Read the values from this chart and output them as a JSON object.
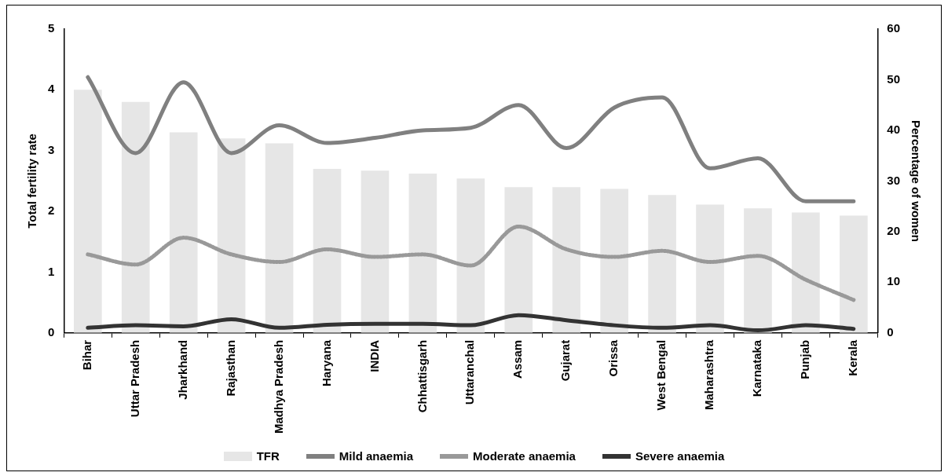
{
  "chart_data": {
    "type": "bar",
    "categories": [
      "Bihar",
      "Uttar Pradesh",
      "Jharkhand",
      "Rajasthan",
      "Madhya Pradesh",
      "Haryana",
      "INDIA",
      "Chhattisgarh",
      "Uttaranchal",
      "Assam",
      "Gujarat",
      "Orissa",
      "West Bengal",
      "Maharashtra",
      "Karnataka",
      "Punjab",
      "Kerala"
    ],
    "ylabel": "Total fertility rate",
    "y2label": "Percentage of women",
    "ylim": [
      0,
      5
    ],
    "yticks": [
      0,
      1,
      2,
      3,
      4,
      5
    ],
    "y2lim": [
      0,
      60
    ],
    "y2ticks": [
      0,
      10,
      20,
      30,
      40,
      50,
      60
    ],
    "grid": false,
    "legend": "bottom",
    "marker": "none",
    "series": [
      {
        "name": "TFR",
        "color": "#e6e6e6",
        "values": [
          4.0,
          3.8,
          3.3,
          3.2,
          3.12,
          2.7,
          2.67,
          2.62,
          2.54,
          2.4,
          2.4,
          2.37,
          2.27,
          2.11,
          2.05,
          1.98,
          1.93
        ]
      },
      {
        "name": "Mild anaemia",
        "type": "line",
        "axis": "y2",
        "color": "#808080",
        "values": [
          50.5,
          35.5,
          49.5,
          35.5,
          41,
          37.5,
          38.5,
          40,
          40.5,
          45,
          36.5,
          44.5,
          46.5,
          32.5,
          34.5,
          26,
          26
        ]
      },
      {
        "name": "Moderate anaemia",
        "type": "line",
        "axis": "y2",
        "color": "#999999",
        "line_style": "dotted",
        "values": [
          15.5,
          13.5,
          18.8,
          15.5,
          14,
          16.5,
          15,
          15.5,
          13.3,
          21,
          16.5,
          15,
          16.2,
          14,
          15.2,
          10.5,
          6.5
        ]
      },
      {
        "name": "Severe anaemia",
        "type": "line",
        "axis": "y2",
        "color": "#333333",
        "values": [
          1,
          1.5,
          1.3,
          2.7,
          1,
          1.6,
          1.8,
          1.8,
          1.5,
          3.5,
          2.5,
          1.5,
          1,
          1.5,
          0.5,
          1.5,
          0.8
        ]
      }
    ]
  }
}
